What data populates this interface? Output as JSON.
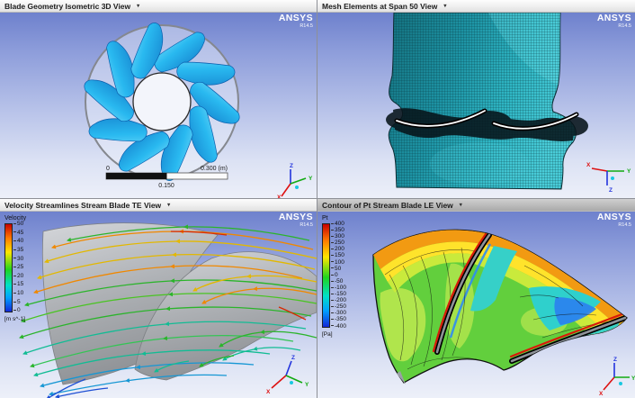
{
  "brand": {
    "name": "ANSYS",
    "version": "R14.5"
  },
  "ui": {
    "dropdown_glyph": "▾"
  },
  "triad": {
    "x": "X",
    "y": "Y",
    "z": "Z"
  },
  "viewports": {
    "blade_geometry": {
      "title": "Blade Geometry Isometric 3D View",
      "ruler": {
        "zero": "0",
        "max": "0.300 (m)",
        "mid": "0.150"
      }
    },
    "mesh": {
      "title": "Mesh Elements at Span 50 View"
    },
    "streamlines": {
      "title": "Velocity Streamlines Stream Blade TE View",
      "legend": {
        "title": "Velocity",
        "unit": "[m s^-1]",
        "ticks": [
          "50",
          "45",
          "40",
          "35",
          "30",
          "25",
          "20",
          "15",
          "10",
          "5",
          "0"
        ]
      }
    },
    "contour": {
      "title": "Contour of Pt Stream Blade LE View",
      "legend": {
        "title": "Pt",
        "unit": "[Pa]",
        "ticks": [
          "400",
          "350",
          "300",
          "250",
          "200",
          "150",
          "100",
          "50",
          "0",
          "-50",
          "-100",
          "-150",
          "-200",
          "-250",
          "-300",
          "-350",
          "-400"
        ]
      }
    }
  },
  "colors": {
    "legend_rainbow": [
      "#c80000",
      "#ff7a00",
      "#ffe600",
      "#1fd41f",
      "#00e0c8",
      "#00a2ff",
      "#1228d8"
    ],
    "blade_blue": "#29b9f0",
    "mesh_teal": "#1d93a4",
    "axis_x": "#dd1111",
    "axis_y": "#11aa11",
    "axis_z": "#2233dd"
  }
}
